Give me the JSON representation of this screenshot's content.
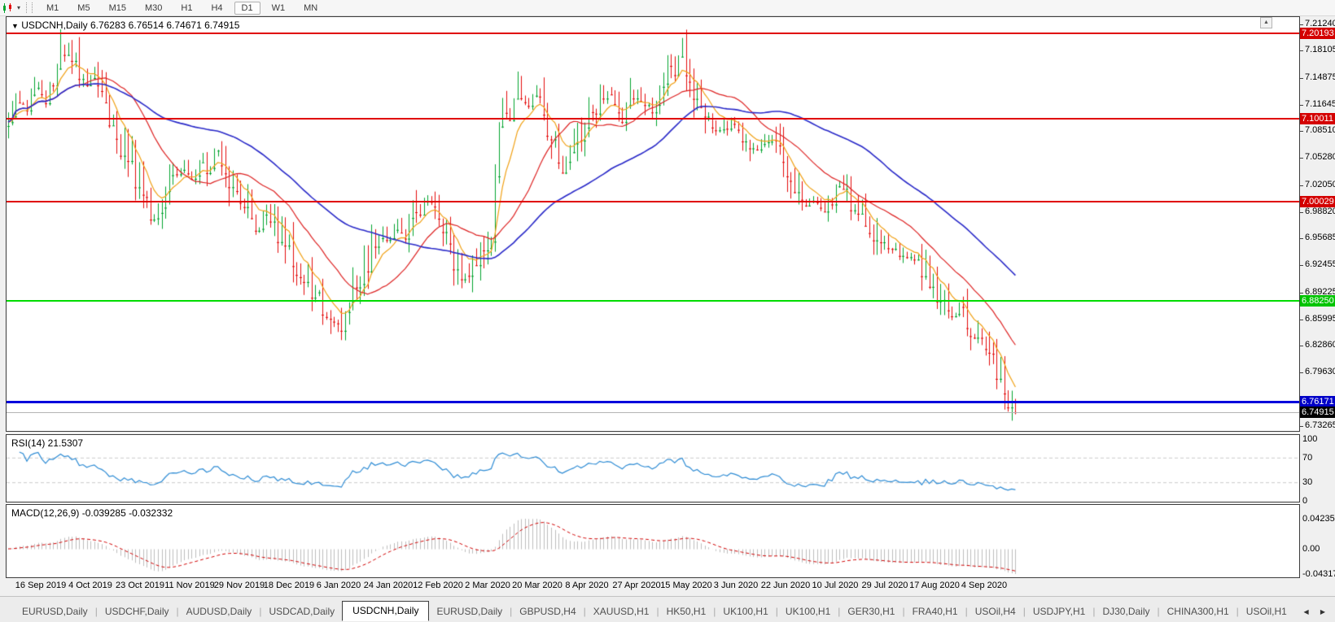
{
  "toolbar": {
    "timeframes": [
      "M1",
      "M5",
      "M15",
      "M30",
      "H1",
      "H4",
      "D1",
      "W1",
      "MN"
    ],
    "active_timeframe": "D1"
  },
  "chart": {
    "symbol_title": "USDCNH,Daily",
    "ohlc_text": "6.76283 6.76514 6.74671 6.74915"
  },
  "indicators": {
    "rsi_label": "RSI(14) 21.5307",
    "macd_label": "MACD(12,26,9) -0.039285 -0.032332"
  },
  "icons": {
    "collapse_caret": "▼",
    "scroll_up": "▲",
    "tab_prev": "◀",
    "tab_next": "▶",
    "tab_separator": "|",
    "dropdown_caret": "▾"
  },
  "price_scale": {
    "ticks": [
      "7.21240",
      "7.18105",
      "7.14875",
      "7.11645",
      "7.08510",
      "7.05280",
      "7.02050",
      "6.98820",
      "6.95685",
      "6.92455",
      "6.89225",
      "6.85995",
      "6.82860",
      "6.79630",
      "6.73265"
    ]
  },
  "rsi_scale": {
    "ticks": [
      "100",
      "70",
      "30",
      "0"
    ],
    "dashed_levels": [
      70,
      30
    ]
  },
  "macd_scale": {
    "ticks": [
      0.042355,
      0,
      -0.043172
    ],
    "tick_labels": [
      "0.042355",
      "0.00",
      "-0.043172"
    ]
  },
  "date_axis": {
    "labels": [
      "16 Sep 2019",
      "4 Oct 2019",
      "23 Oct 2019",
      "11 Nov 2019",
      "29 Nov 2019",
      "18 Dec 2019",
      "6 Jan 2020",
      "24 Jan 2020",
      "12 Feb 2020",
      "2 Mar 2020",
      "20 Mar 2020",
      "8 Apr 2020",
      "27 Apr 2020",
      "15 May 2020",
      "3 Jun 2020",
      "22 Jun 2020",
      "10 Jul 2020",
      "29 Jul 2020",
      "17 Aug 2020",
      "4 Sep 2020"
    ]
  },
  "tabs": {
    "items": [
      "EURUSD,Daily",
      "USDCHF,Daily",
      "AUDUSD,Daily",
      "USDCAD,Daily",
      "USDCNH,Daily",
      "EURUSD,Daily",
      "GBPUSD,H4",
      "XAUUSD,H1",
      "HK50,H1",
      "UK100,H1",
      "UK100,H1",
      "GER30,H1",
      "FRA40,H1",
      "USOil,H4",
      "USDJPY,H1",
      "DJ30,Daily",
      "CHINA300,H1",
      "USOil,H1"
    ],
    "active_index": 4
  },
  "colors": {
    "candle_up": "#00a32e",
    "candle_down": "#e30b0b",
    "ma_fast": "#f0a014",
    "ma_mid": "#dd2222",
    "ma_slow": "#2929c8",
    "rsi_line": "#2d8bd4",
    "rsi_dashed": "#c8c8c8",
    "macd_hist": "#bdbdbd",
    "macd_signal": "#d00000"
  },
  "chart_data": {
    "type": "candlestick",
    "symbol": "USDCNH",
    "timeframe": "Daily",
    "ohlc_display": {
      "open": 6.76283,
      "high": 6.76514,
      "low": 6.74671,
      "close": 6.74915
    },
    "price_axis": {
      "min": 6.73265,
      "max": 7.2124
    },
    "horizontal_levels": [
      {
        "role": "resistance-1",
        "price": 7.20193,
        "label": "7.20193",
        "line_color": "#e00000",
        "badge_bg": "#d40000",
        "badge_fg": "#ffffff",
        "thickness": 2
      },
      {
        "role": "resistance-2",
        "price": 7.10011,
        "label": "7.10011",
        "line_color": "#e00000",
        "badge_bg": "#d40000",
        "badge_fg": "#ffffff",
        "thickness": 2
      },
      {
        "role": "resistance-3",
        "price": 7.00029,
        "label": "7.00029",
        "line_color": "#e00000",
        "badge_bg": "#d40000",
        "badge_fg": "#ffffff",
        "thickness": 2
      },
      {
        "role": "support-green",
        "price": 6.8825,
        "label": "6.88250",
        "line_color": "#00dc00",
        "badge_bg": "#00c400",
        "badge_fg": "#ffffff",
        "thickness": 2
      },
      {
        "role": "support-blue",
        "price": 6.76171,
        "label": "6.76171",
        "line_color": "#0000dc",
        "badge_bg": "#0000c8",
        "badge_fg": "#ffffff",
        "thickness": 3
      },
      {
        "role": "current-price",
        "price": 6.74915,
        "label": "6.74915",
        "line_color": "#b4b4b4",
        "badge_bg": "#000000",
        "badge_fg": "#ffffff",
        "thickness": 1
      }
    ],
    "moving_averages": [
      {
        "name": "fast-ma",
        "period": 8,
        "method": "ema",
        "color": "#f0a014"
      },
      {
        "name": "mid-ma",
        "period": 21,
        "method": "sma",
        "color": "#dd2222"
      },
      {
        "name": "slow-ma",
        "period": 55,
        "method": "sma",
        "color": "#2929c8"
      }
    ],
    "rsi": {
      "period": 14,
      "current": 21.5307,
      "levels": [
        70,
        30
      ],
      "range": [
        0,
        100
      ]
    },
    "macd": {
      "fast": 12,
      "slow": 26,
      "signal": 9,
      "macd_value": -0.039285,
      "signal_value": -0.032332,
      "axis_max": 0.042355,
      "axis_min": -0.043172
    },
    "price_path_anchors": [
      [
        10,
        7.095
      ],
      [
        22,
        7.125
      ],
      [
        34,
        7.11
      ],
      [
        46,
        7.14
      ],
      [
        58,
        7.12
      ],
      [
        70,
        7.165
      ],
      [
        82,
        7.185
      ],
      [
        94,
        7.16
      ],
      [
        106,
        7.14
      ],
      [
        118,
        7.155
      ],
      [
        130,
        7.12
      ],
      [
        142,
        7.08
      ],
      [
        154,
        7.06
      ],
      [
        166,
        7.035
      ],
      [
        178,
        7.0
      ],
      [
        190,
        6.975
      ],
      [
        200,
        6.99
      ],
      [
        212,
        7.03
      ],
      [
        224,
        7.045
      ],
      [
        236,
        7.03
      ],
      [
        248,
        7.05
      ],
      [
        258,
        7.04
      ],
      [
        264,
        7.07
      ],
      [
        272,
        7.04
      ],
      [
        284,
        7.02
      ],
      [
        296,
        6.995
      ],
      [
        308,
        6.99
      ],
      [
        316,
        6.955
      ],
      [
        324,
        6.985
      ],
      [
        336,
        6.975
      ],
      [
        348,
        6.95
      ],
      [
        360,
        6.935
      ],
      [
        372,
        6.91
      ],
      [
        384,
        6.895
      ],
      [
        396,
        6.875
      ],
      [
        408,
        6.855
      ],
      [
        416,
        6.848
      ],
      [
        424,
        6.87
      ],
      [
        436,
        6.9
      ],
      [
        448,
        6.925
      ],
      [
        458,
        6.95
      ],
      [
        468,
        6.965
      ],
      [
        478,
        6.955
      ],
      [
        488,
        6.975
      ],
      [
        498,
        6.96
      ],
      [
        508,
        6.985
      ],
      [
        518,
        7.0
      ],
      [
        528,
        7.01
      ],
      [
        538,
        6.985
      ],
      [
        548,
        6.96
      ],
      [
        558,
        6.935
      ],
      [
        568,
        6.91
      ],
      [
        578,
        6.925
      ],
      [
        588,
        6.94
      ],
      [
        598,
        6.955
      ],
      [
        606,
        6.975
      ],
      [
        612,
        7.1
      ],
      [
        618,
        7.13
      ],
      [
        626,
        7.095
      ],
      [
        634,
        7.14
      ],
      [
        642,
        7.12
      ],
      [
        650,
        7.11
      ],
      [
        658,
        7.135
      ],
      [
        666,
        7.12
      ],
      [
        674,
        7.09
      ],
      [
        682,
        7.065
      ],
      [
        690,
        7.04
      ],
      [
        698,
        7.055
      ],
      [
        706,
        7.065
      ],
      [
        714,
        7.08
      ],
      [
        722,
        7.095
      ],
      [
        730,
        7.105
      ],
      [
        740,
        7.12
      ],
      [
        750,
        7.135
      ],
      [
        758,
        7.1
      ],
      [
        766,
        7.095
      ],
      [
        774,
        7.12
      ],
      [
        782,
        7.135
      ],
      [
        790,
        7.125
      ],
      [
        800,
        7.11
      ],
      [
        810,
        7.13
      ],
      [
        820,
        7.15
      ],
      [
        830,
        7.16
      ],
      [
        838,
        7.185
      ],
      [
        846,
        7.155
      ],
      [
        854,
        7.13
      ],
      [
        862,
        7.12
      ],
      [
        870,
        7.1
      ],
      [
        880,
        7.085
      ],
      [
        890,
        7.09
      ],
      [
        900,
        7.1
      ],
      [
        910,
        7.085
      ],
      [
        920,
        7.075
      ],
      [
        930,
        7.06
      ],
      [
        940,
        7.07
      ],
      [
        950,
        7.08
      ],
      [
        960,
        7.06
      ],
      [
        970,
        7.03
      ],
      [
        980,
        7.005
      ],
      [
        990,
        6.995
      ],
      [
        1000,
        7.005
      ],
      [
        1010,
        6.99
      ],
      [
        1020,
        7.005
      ],
      [
        1030,
        7.025
      ],
      [
        1040,
        7.01
      ],
      [
        1050,
        6.995
      ],
      [
        1060,
        6.985
      ],
      [
        1070,
        6.97
      ],
      [
        1080,
        6.955
      ],
      [
        1090,
        6.94
      ],
      [
        1100,
        6.945
      ],
      [
        1112,
        6.93
      ],
      [
        1124,
        6.935
      ],
      [
        1136,
        6.915
      ],
      [
        1148,
        6.9
      ],
      [
        1158,
        6.885
      ],
      [
        1168,
        6.862
      ],
      [
        1178,
        6.875
      ],
      [
        1188,
        6.86
      ],
      [
        1198,
        6.835
      ],
      [
        1208,
        6.845
      ],
      [
        1218,
        6.815
      ],
      [
        1228,
        6.795
      ],
      [
        1236,
        6.775
      ],
      [
        1244,
        6.758
      ],
      [
        1248,
        6.75
      ]
    ]
  }
}
